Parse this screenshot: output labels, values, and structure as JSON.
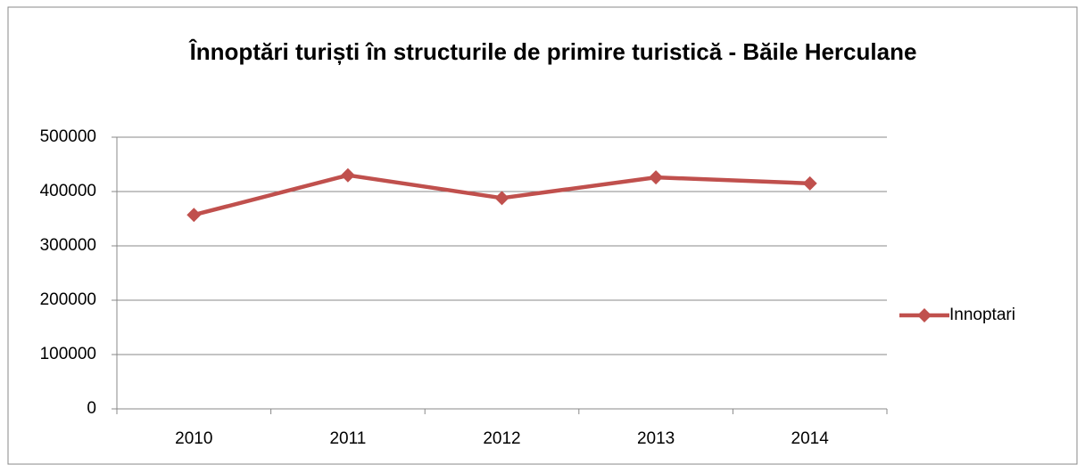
{
  "chart_data": {
    "type": "line",
    "title": "Înnoptări turiști în structurile de primire turistică - Băile Herculane",
    "categories": [
      "2010",
      "2011",
      "2012",
      "2013",
      "2014"
    ],
    "series": [
      {
        "name": "Innoptari",
        "color": "#c0504d",
        "values": [
          357000,
          430000,
          388000,
          426000,
          415000
        ]
      }
    ],
    "ylim": [
      0,
      500000
    ],
    "yticks": [
      0,
      100000,
      200000,
      300000,
      400000,
      500000
    ],
    "grid": true,
    "legend": "right"
  }
}
